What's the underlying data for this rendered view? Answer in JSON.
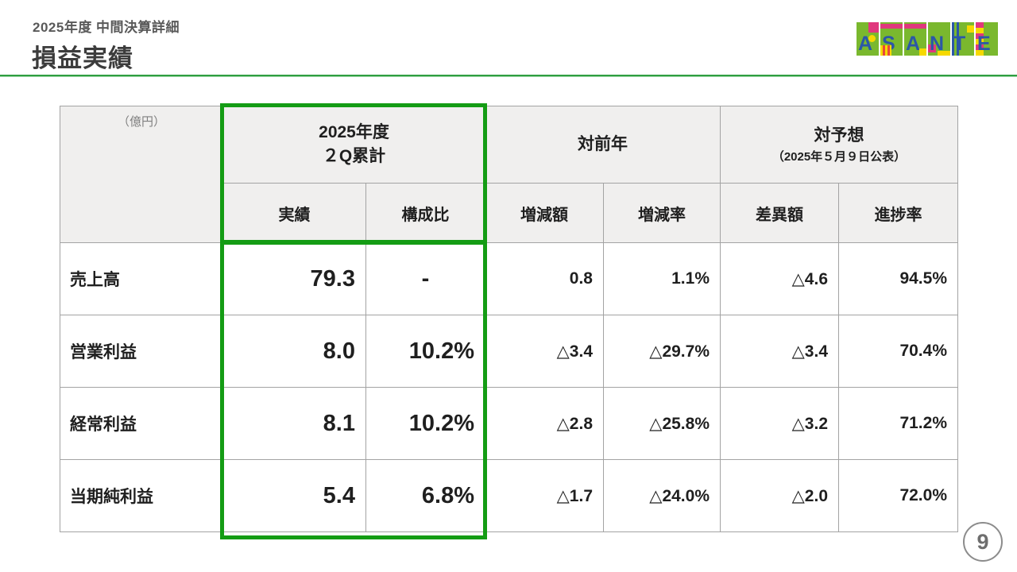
{
  "header": {
    "subtitle": "2025年度 中間決算詳細",
    "title": "損益実績"
  },
  "logo": {
    "name": "ASANTE",
    "letters": [
      "A",
      "S",
      "A",
      "N",
      "T",
      "E"
    ],
    "colors": {
      "green": "#7ab82e",
      "blue": "#2b57a7",
      "pink": "#e0387d",
      "yellow": "#f6d900",
      "red": "#e8483a"
    }
  },
  "accent": {
    "highlight_green": "#149c14",
    "rule_green": "#2f9e41",
    "header_fill": "#f0efee"
  },
  "table": {
    "unit_label": "（億円）",
    "group_headers": [
      {
        "line1": "2025年度",
        "line2": "２Q累計"
      },
      {
        "line1": "対前年",
        "line2": ""
      },
      {
        "line1": "対予想",
        "line2": "（2025年５月９日公表）"
      }
    ],
    "column_headers": [
      "実績",
      "構成比",
      "増減額",
      "増減率",
      "差異額",
      "進捗率"
    ],
    "rows": [
      {
        "label": "売上高",
        "values": [
          "79.3",
          "-",
          "0.8",
          "1.1%",
          "△4.6",
          "94.5%"
        ]
      },
      {
        "label": "営業利益",
        "values": [
          "8.0",
          "10.2%",
          "△3.4",
          "△29.7%",
          "△3.4",
          "70.4%"
        ]
      },
      {
        "label": "経常利益",
        "values": [
          "8.1",
          "10.2%",
          "△2.8",
          "△25.8%",
          "△3.2",
          "71.2%"
        ]
      },
      {
        "label": "当期純利益",
        "values": [
          "5.4",
          "6.8%",
          "△1.7",
          "△24.0%",
          "△2.0",
          "72.0%"
        ]
      }
    ]
  },
  "page_number": "9"
}
